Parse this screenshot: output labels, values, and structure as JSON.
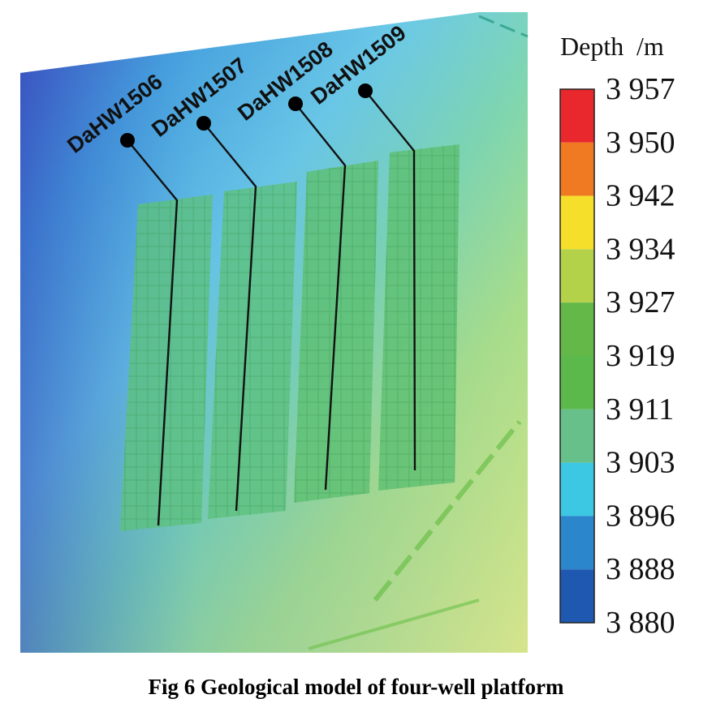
{
  "legend": {
    "title": "Depth",
    "unit": "/m",
    "ticks": [
      "3 957",
      "3 950",
      "3 942",
      "3 934",
      "3 927",
      "3 919",
      "3 911",
      "3 903",
      "3 896",
      "3 888",
      "3 880"
    ],
    "colors": [
      "#e8282c",
      "#ef7a22",
      "#f6df2a",
      "#b3d24a",
      "#63b847",
      "#5ab94a",
      "#67c08a",
      "#3cc8e2",
      "#2c86cc",
      "#1e58b0"
    ]
  },
  "wells": [
    {
      "name": "DaHW1506"
    },
    {
      "name": "DaHW1507"
    },
    {
      "name": "DaHW1508"
    },
    {
      "name": "DaHW1509"
    }
  ],
  "caption": "Fig 6 Geological model of four-well platform"
}
